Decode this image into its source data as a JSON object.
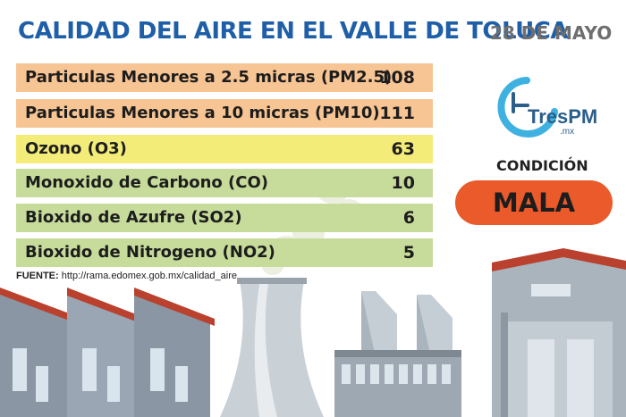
{
  "header": {
    "title": "CALIDAD DEL AIRE EN EL VALLE DE TOLUCA",
    "date": "28 DE MAYO"
  },
  "pollutants": [
    {
      "label": "Particulas Menores a 2.5 micras (PM2.5)",
      "value": "108",
      "color": "#f7c594"
    },
    {
      "label": "Particulas Menores a 10 micras (PM10)",
      "value": "111",
      "color": "#f7c594"
    },
    {
      "label": "Ozono (O3)",
      "value": "63",
      "color": "#f4ec79"
    },
    {
      "label": "Monoxido de Carbono (CO)",
      "value": "10",
      "color": "#c7dc9b"
    },
    {
      "label": "Bioxido de Azufre (SO2)",
      "value": "6",
      "color": "#c7dc9b"
    },
    {
      "label": "Bioxido de Nitrogeno (NO2)",
      "value": "5",
      "color": "#c7dc9b"
    }
  ],
  "source": {
    "prefix": "FUENTE:",
    "url": "http://rama.edomex.gob.mx/calidad_aire"
  },
  "logo": {
    "name": "TresPM",
    "suffix": ".mx",
    "icon": "clock-icon"
  },
  "condition": {
    "label": "CONDICIÓN",
    "value": "MALA",
    "color": "#ea5a2a"
  }
}
